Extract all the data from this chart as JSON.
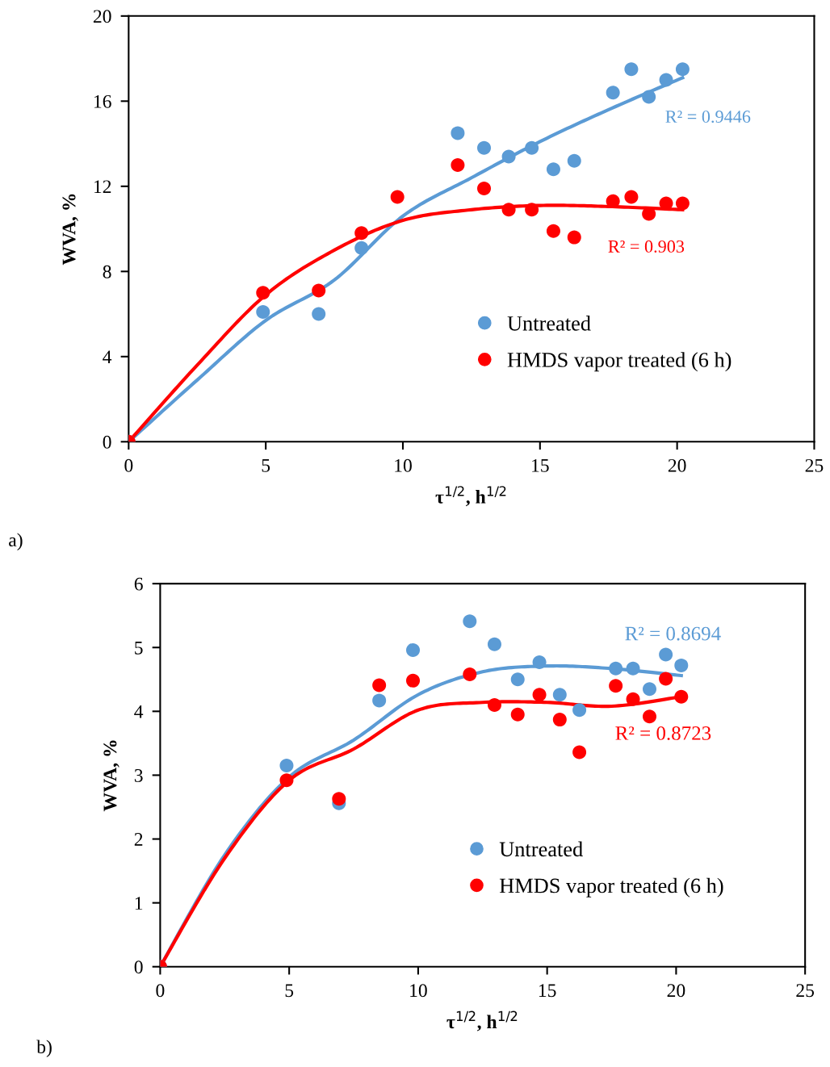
{
  "chart_data": [
    {
      "type": "scatter",
      "xlabel": "τ$^{1/2}$, h$^{1/2}$",
      "ylabel": "WVA, %",
      "xlim": [
        0,
        25
      ],
      "xticks": [
        0,
        5,
        10,
        15,
        20,
        25
      ],
      "ylim": [
        0,
        20
      ],
      "yticks": [
        0,
        4,
        8,
        12,
        16,
        20
      ],
      "grid": false,
      "legend": "bottom right",
      "annotations": [
        "R² = 0.9446",
        "R² = 0.903",
        "a)"
      ],
      "series": [
        {
          "name": "Untreated",
          "color": "#5b9bd5",
          "x": [
            0,
            4.9,
            6.93,
            8.49,
            12,
            12.96,
            13.86,
            14.7,
            15.49,
            16.25,
            17.66,
            18.33,
            18.97,
            19.6,
            20.2
          ],
          "values": [
            0,
            6.1,
            6.0,
            9.1,
            14.5,
            13.8,
            13.4,
            13.8,
            12.8,
            13.2,
            16.4,
            17.5,
            16.2,
            17.0,
            17.5
          ]
        },
        {
          "name": "HMDS vapor treated (6 h)",
          "color": "#ff0000",
          "x": [
            0,
            4.9,
            6.93,
            8.49,
            9.8,
            12,
            12.96,
            13.86,
            14.7,
            15.49,
            16.25,
            17.66,
            18.33,
            18.97,
            19.6,
            20.2
          ],
          "values": [
            0,
            7.0,
            7.1,
            9.8,
            11.5,
            13.0,
            11.9,
            10.9,
            10.9,
            9.9,
            9.6,
            11.3,
            11.5,
            10.7,
            11.2,
            11.2
          ]
        },
        {
          "type": "line",
          "color": "#5b9bd5",
          "x": [
            0,
            2.5,
            5,
            7.5,
            10,
            12.5,
            15,
            17.5,
            20.2
          ],
          "values": [
            0,
            2.9,
            5.7,
            7.6,
            10.6,
            12.4,
            14.1,
            15.6,
            17.1
          ]
        },
        {
          "type": "line",
          "color": "#ff0000",
          "x": [
            0,
            2.5,
            5,
            7.5,
            10,
            12.5,
            15,
            17.5,
            20.2
          ],
          "values": [
            0,
            3.6,
            6.9,
            9.0,
            10.4,
            10.9,
            11.1,
            11.05,
            10.9
          ]
        }
      ]
    },
    {
      "type": "scatter",
      "xlabel": "τ$^{1/2}$, h$^{1/2}$",
      "ylabel": "WVA, %",
      "xlim": [
        0,
        25
      ],
      "xticks": [
        0,
        5,
        10,
        15,
        20,
        25
      ],
      "ylim": [
        0,
        6
      ],
      "yticks": [
        0,
        1,
        2,
        3,
        4,
        5,
        6
      ],
      "grid": false,
      "legend": "bottom right",
      "annotations": [
        "R² = 0.8694",
        "R² = 0.8723",
        "b)"
      ],
      "series": [
        {
          "name": "Untreated",
          "color": "#5b9bd5",
          "x": [
            0,
            4.9,
            6.93,
            8.49,
            9.8,
            12,
            12.96,
            13.86,
            14.7,
            15.49,
            16.25,
            17.66,
            18.33,
            18.97,
            19.6,
            20.2
          ],
          "values": [
            0,
            3.15,
            2.56,
            4.17,
            4.96,
            5.41,
            5.05,
            4.5,
            4.77,
            4.26,
            4.02,
            4.67,
            4.67,
            4.35,
            4.89,
            4.72
          ]
        },
        {
          "name": "HMDS vapor treated (6 h)",
          "color": "#ff0000",
          "x": [
            0,
            4.9,
            6.93,
            8.49,
            9.8,
            12,
            12.96,
            13.86,
            14.7,
            15.49,
            16.25,
            17.66,
            18.33,
            18.97,
            19.6,
            20.2
          ],
          "values": [
            0,
            2.92,
            2.63,
            4.41,
            4.48,
            4.58,
            4.1,
            3.95,
            4.26,
            3.87,
            3.36,
            4.4,
            4.19,
            3.92,
            4.51,
            4.23
          ]
        },
        {
          "type": "line",
          "color": "#5b9bd5",
          "x": [
            0,
            2.5,
            5,
            7.5,
            10,
            12.5,
            15,
            17.5,
            20.2
          ],
          "values": [
            0,
            1.75,
            2.97,
            3.55,
            4.26,
            4.62,
            4.71,
            4.67,
            4.56
          ]
        },
        {
          "type": "line",
          "color": "#ff0000",
          "x": [
            0,
            2.5,
            5,
            7.5,
            10,
            12.5,
            15,
            17.5,
            20.2
          ],
          "values": [
            0,
            1.7,
            2.92,
            3.41,
            4.02,
            4.14,
            4.14,
            4.08,
            4.23
          ]
        }
      ]
    }
  ]
}
